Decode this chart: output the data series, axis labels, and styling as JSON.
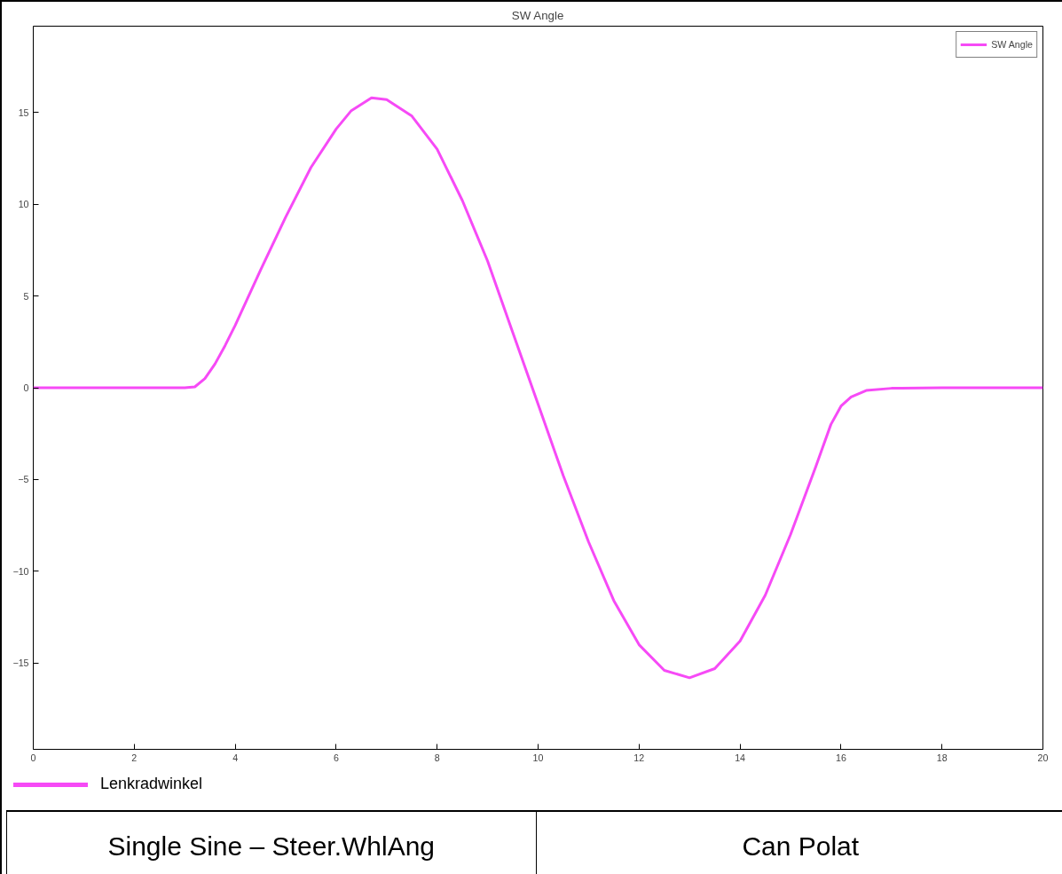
{
  "chart_data": {
    "type": "line",
    "title": "SW Angle",
    "x": [
      0,
      3.0,
      3.2,
      3.4,
      3.6,
      3.8,
      4.0,
      4.5,
      5.0,
      5.5,
      6.0,
      6.3,
      6.7,
      7.0,
      7.5,
      8.0,
      8.5,
      9.0,
      9.5,
      10.0,
      10.5,
      11.0,
      11.5,
      12.0,
      12.5,
      13.0,
      13.5,
      14.0,
      14.5,
      15.0,
      15.5,
      15.8,
      16.0,
      16.2,
      16.5,
      17.0,
      18.0,
      20.0
    ],
    "series": [
      {
        "name": "SW Angle",
        "color": "#f64af6",
        "values": [
          0,
          0,
          0.05,
          0.5,
          1.3,
          2.3,
          3.4,
          6.4,
          9.3,
          12.0,
          14.1,
          15.1,
          15.8,
          15.7,
          14.8,
          13.0,
          10.2,
          6.9,
          3.0,
          -0.9,
          -4.8,
          -8.4,
          -11.6,
          -14.0,
          -15.4,
          -15.8,
          -15.3,
          -13.8,
          -11.3,
          -8.0,
          -4.3,
          -2.0,
          -1.0,
          -0.5,
          -0.15,
          -0.03,
          0,
          0
        ]
      }
    ],
    "xlim": [
      0,
      20
    ],
    "xticks": [
      0,
      2,
      4,
      6,
      8,
      10,
      12,
      14,
      16,
      18,
      20
    ],
    "ylim": [
      -19.7,
      19.7
    ],
    "yticks": [
      -15,
      -10,
      -5,
      0,
      5,
      10,
      15
    ],
    "grid": false,
    "legend": "top right",
    "marker": "none",
    "line_style": "solid",
    "annotations": [
      "Lenkradwinkel",
      "Single Sine – Steer.WhlAng",
      "Can Polat"
    ]
  }
}
